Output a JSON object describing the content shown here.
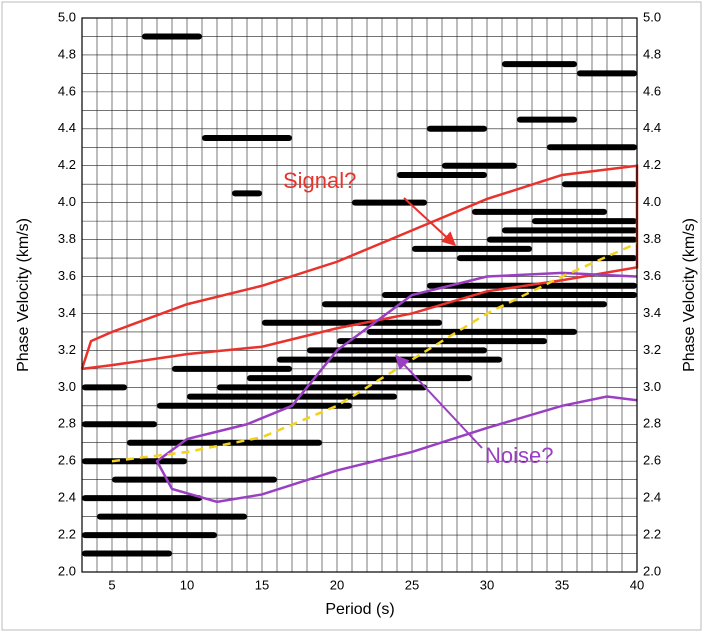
{
  "chart_data": {
    "type": "dispersion",
    "x_label": "Period (s)",
    "y_label": "Phase Velocity (km/s)",
    "xlim": [
      3,
      40
    ],
    "ylim": [
      2,
      5
    ],
    "xticks": [
      5,
      10,
      15,
      20,
      25,
      30,
      35,
      40
    ],
    "yticks": [
      {
        "value": 2,
        "label": "2.0"
      },
      2.2,
      2.4,
      2.6,
      2.8,
      {
        "value": 3,
        "label": "3.0"
      },
      3.2,
      3.4,
      3.6,
      3.8,
      {
        "value": 4,
        "label": "4.0"
      },
      4.2,
      4.4,
      4.6,
      4.8,
      {
        "value": 5,
        "label": "5.0"
      }
    ],
    "xminorticks": [
      4,
      6,
      7,
      8,
      9,
      11,
      12,
      13,
      14,
      16,
      17,
      18,
      19,
      21,
      22,
      23,
      24,
      26,
      27,
      28,
      29,
      31,
      32,
      33,
      34,
      36,
      37,
      38,
      39
    ],
    "yminorticks": [
      2.1,
      2.3,
      2.5,
      2.7,
      2.9,
      3.1,
      3.3,
      3.5,
      3.7,
      3.9,
      4.1,
      4.3,
      4.5,
      4.7,
      4.9
    ],
    "grid": true,
    "streaks": {
      "color": "#000000",
      "x_start": [
        3,
        3,
        4,
        3,
        5,
        3,
        6,
        3,
        8,
        10,
        12,
        14,
        9,
        16,
        18,
        20,
        22,
        15,
        19,
        23,
        26,
        28,
        25,
        30,
        31,
        33,
        29,
        35,
        34,
        32,
        27,
        24,
        31,
        36,
        11,
        21,
        26,
        3,
        7,
        13
      ],
      "x_end": [
        9,
        12,
        14,
        11,
        16,
        10,
        19,
        8,
        21,
        24,
        26,
        29,
        17,
        31,
        30,
        34,
        36,
        27,
        38,
        40,
        40,
        40,
        33,
        40,
        40,
        40,
        38,
        40,
        40,
        36,
        32,
        30,
        36,
        40,
        17,
        26,
        30,
        6,
        11,
        15
      ],
      "values": [
        2.1,
        2.2,
        2.3,
        2.4,
        2.5,
        2.6,
        2.7,
        2.8,
        2.9,
        2.95,
        3.0,
        3.05,
        3.1,
        3.15,
        3.2,
        3.25,
        3.3,
        3.35,
        3.45,
        3.5,
        3.55,
        3.7,
        3.75,
        3.8,
        3.85,
        3.9,
        3.95,
        4.1,
        4.3,
        4.45,
        4.2,
        4.15,
        4.75,
        4.7,
        4.35,
        4.0,
        4.4,
        3.0,
        4.9,
        4.05
      ]
    },
    "series": [
      {
        "name": "Signal?",
        "color": "#e8322b",
        "dash": false,
        "x": [
          3,
          3.6,
          5,
          10,
          15,
          20,
          25,
          30,
          35,
          40,
          40,
          35,
          30,
          25,
          20,
          15,
          10,
          5,
          3
        ],
        "values": [
          3.1,
          3.25,
          3.3,
          3.45,
          3.55,
          3.68,
          3.85,
          4.02,
          4.15,
          4.2,
          3.65,
          3.58,
          3.52,
          3.4,
          3.32,
          3.22,
          3.18,
          3.12,
          3.1
        ]
      },
      {
        "name": "Noise?",
        "color": "#9b3fc2",
        "dash": false,
        "x": [
          40,
          35,
          30,
          25,
          20,
          17,
          14,
          10,
          8,
          9,
          12,
          15,
          20,
          25,
          30,
          35,
          38,
          40
        ],
        "values": [
          3.6,
          3.62,
          3.6,
          3.5,
          3.2,
          2.9,
          2.8,
          2.72,
          2.6,
          2.45,
          2.38,
          2.42,
          2.55,
          2.65,
          2.78,
          2.9,
          2.95,
          2.93
        ]
      },
      {
        "color": "#f2d21b",
        "dash": true,
        "x": [
          5,
          10,
          15,
          20,
          25,
          30,
          35,
          40
        ],
        "values": [
          2.6,
          2.65,
          2.73,
          2.9,
          3.15,
          3.4,
          3.6,
          3.78
        ]
      }
    ]
  }
}
